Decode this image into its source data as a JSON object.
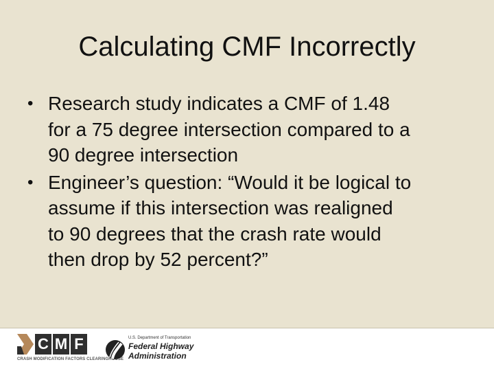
{
  "slide": {
    "title": "Calculating CMF Incorrectly",
    "bullets": [
      {
        "lines": [
          "Research study indicates a CMF of 1.48",
          "for a 75 degree intersection compared to a",
          "90 degree intersection"
        ]
      },
      {
        "lines": [
          "Engineer’s question: “Would it be logical to",
          "assume if this intersection was realigned",
          "to 90 degrees that the crash rate would",
          "then drop by 52 percent?”"
        ]
      }
    ],
    "bullet_symbol": "•"
  },
  "footer": {
    "cmf_logo": {
      "letters": [
        "C",
        "M",
        "F"
      ],
      "tagline": "CRASH MODIFICATION FACTORS CLEARINGHOUSE",
      "icon": "cmf-chevron-icon"
    },
    "fhwa_logo": {
      "dept": "U.S. Department of Transportation",
      "name_line1": "Federal Highway",
      "name_line2": "Administration",
      "icon": "fhwa-road-emblem-icon"
    }
  },
  "colors": {
    "background": "#e9e3d0",
    "footer": "#ffffff",
    "cmf_box": "#2f2f2f",
    "cmf_accent": "#b5885a"
  }
}
